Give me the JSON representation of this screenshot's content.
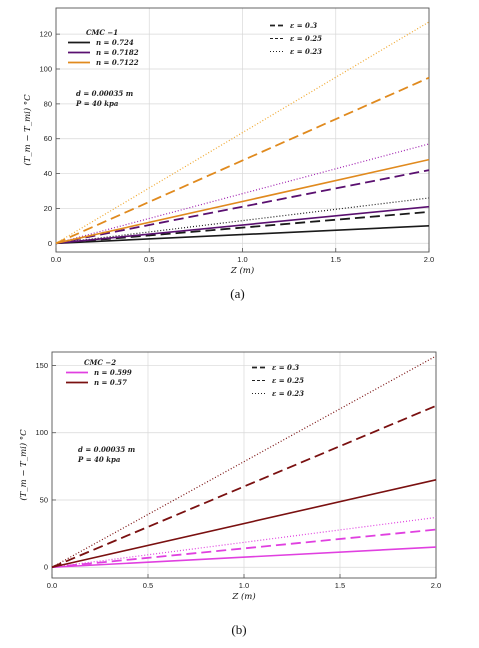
{
  "chart_data": [
    {
      "type": "line",
      "caption": "(a)",
      "xlabel": "Z (m)",
      "ylabel": "(T_m − T_mi) °C",
      "xlim": [
        0,
        2.0
      ],
      "ylim": [
        -5,
        135
      ],
      "xticks": [
        "0.0",
        "0.5",
        "1.0",
        "1.5",
        "2.0"
      ],
      "yticks": [
        "0",
        "20",
        "40",
        "60",
        "80",
        "100",
        "120"
      ],
      "grid": true,
      "legend_fluid": {
        "title": "CMC −1",
        "entries": [
          {
            "label": "n = 0.724",
            "color": "#1a1a1a"
          },
          {
            "label": "n = 0.7182",
            "color": "#5a1070"
          },
          {
            "label": "n = 0.7122",
            "color": "#e08a1e"
          }
        ]
      },
      "legend_eps": [
        {
          "label": "ε = 0.3",
          "style": "dashed"
        },
        {
          "label": "ε = 0.25",
          "style": "dense-dashed"
        },
        {
          "label": "ε = 0.23",
          "style": "dotted"
        }
      ],
      "annotations": [
        "d = 0.00035 m",
        "P = 40 kpa"
      ],
      "series": [
        {
          "color": "#1a1a1a",
          "style": "solid",
          "x": [
            0,
            2.0
          ],
          "y": [
            0,
            10
          ]
        },
        {
          "color": "#1a1a1a",
          "style": "dashed",
          "x": [
            0,
            2.0
          ],
          "y": [
            0,
            18
          ]
        },
        {
          "color": "#1a1a1a",
          "style": "dotted",
          "x": [
            0,
            2.0
          ],
          "y": [
            0,
            26
          ]
        },
        {
          "color": "#5a1070",
          "style": "solid",
          "x": [
            0,
            2.0
          ],
          "y": [
            0,
            21
          ]
        },
        {
          "color": "#5a1070",
          "style": "dashed",
          "x": [
            0,
            2.0
          ],
          "y": [
            0,
            42
          ]
        },
        {
          "color": "#a020b0",
          "style": "dotted",
          "x": [
            0,
            2.0
          ],
          "y": [
            0,
            57
          ]
        },
        {
          "color": "#e08a1e",
          "style": "solid",
          "x": [
            0,
            2.0
          ],
          "y": [
            0,
            48
          ]
        },
        {
          "color": "#e08a1e",
          "style": "dashed",
          "x": [
            0,
            2.0
          ],
          "y": [
            0,
            95
          ]
        },
        {
          "color": "#f0a830",
          "style": "dotted",
          "x": [
            0,
            2.0
          ],
          "y": [
            0,
            127
          ]
        }
      ]
    },
    {
      "type": "line",
      "caption": "(b)",
      "xlabel": "Z (m)",
      "ylabel": "(T_m − T_mi) °C",
      "xlim": [
        0,
        2.0
      ],
      "ylim": [
        -8,
        160
      ],
      "xticks": [
        "0.0",
        "0.5",
        "1.0",
        "1.5",
        "2.0"
      ],
      "yticks": [
        "0",
        "50",
        "100",
        "150"
      ],
      "grid": true,
      "legend_fluid": {
        "title": "CMC −2",
        "entries": [
          {
            "label": "n = 0.599",
            "color": "#e040e0"
          },
          {
            "label": "n = 0.57",
            "color": "#7a1010"
          }
        ]
      },
      "legend_eps": [
        {
          "label": "ε = 0.3",
          "style": "dashed"
        },
        {
          "label": "ε = 0.25",
          "style": "dense-dashed"
        },
        {
          "label": "ε = 0.23",
          "style": "dotted"
        }
      ],
      "annotations": [
        "d = 0.00035 m",
        "P = 40 kpa"
      ],
      "series": [
        {
          "color": "#e040e0",
          "style": "solid",
          "x": [
            0,
            2.0
          ],
          "y": [
            0,
            15
          ]
        },
        {
          "color": "#e040e0",
          "style": "dashed",
          "x": [
            0,
            2.0
          ],
          "y": [
            0,
            28
          ]
        },
        {
          "color": "#e040e0",
          "style": "dotted",
          "x": [
            0,
            2.0
          ],
          "y": [
            0,
            37
          ]
        },
        {
          "color": "#7a1010",
          "style": "solid",
          "x": [
            0,
            2.0
          ],
          "y": [
            0,
            65
          ]
        },
        {
          "color": "#7a1010",
          "style": "dashed",
          "x": [
            0,
            2.0
          ],
          "y": [
            0,
            120
          ]
        },
        {
          "color": "#7a1010",
          "style": "dotted",
          "x": [
            0,
            2.0
          ],
          "y": [
            0,
            157
          ]
        }
      ]
    }
  ]
}
